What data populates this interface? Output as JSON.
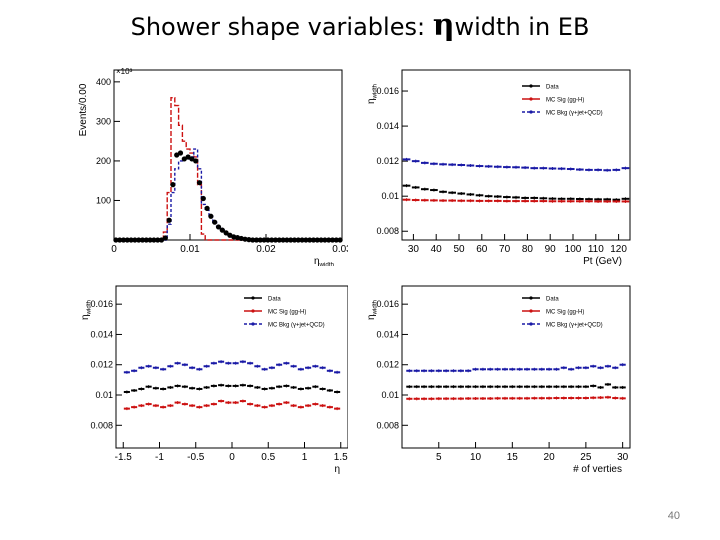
{
  "slide": {
    "title_prefix": "Shower shape variables: ",
    "title_symbol": "η",
    "title_suffix": "width in EB",
    "page_number": "40"
  },
  "colors": {
    "data": "#000000",
    "sig": "#cc1111",
    "bkg": "#1a1aa6"
  },
  "chart_data": [
    {
      "id": "hist",
      "type": "histogram",
      "xlabel": "η_width",
      "ylabel": "Events/0.00",
      "exponent_label": "×10³",
      "xlim": [
        0,
        0.03
      ],
      "ylim": [
        0,
        430
      ],
      "x_tick_labels": [
        "0",
        "0.01",
        "0.02",
        "0.03"
      ],
      "x_tick_values": [
        0,
        0.01,
        0.02,
        0.03
      ],
      "y_tick_labels": [
        "100",
        "200",
        "300",
        "400"
      ],
      "y_tick_values": [
        100,
        200,
        300,
        400
      ],
      "bin_edges": [
        0.0,
        0.0005,
        0.001,
        0.0015,
        0.002,
        0.0025,
        0.003,
        0.0035,
        0.004,
        0.0045,
        0.005,
        0.0055,
        0.006,
        0.0065,
        0.007,
        0.0075,
        0.008,
        0.0085,
        0.009,
        0.0095,
        0.01,
        0.0105,
        0.011,
        0.0115,
        0.012,
        0.0125,
        0.013,
        0.0135,
        0.014,
        0.0145,
        0.015,
        0.0155,
        0.016,
        0.0165,
        0.017,
        0.0175,
        0.018,
        0.0185,
        0.019,
        0.0195,
        0.02,
        0.0205,
        0.021,
        0.0215,
        0.022,
        0.0225,
        0.023,
        0.0235,
        0.024,
        0.0245,
        0.025,
        0.0255,
        0.026,
        0.0265,
        0.027,
        0.0275,
        0.028,
        0.0285,
        0.029,
        0.0295,
        0.03
      ],
      "series": [
        {
          "name": "MC Sig (gg-H)",
          "style": "step-dashed",
          "color_key": "sig",
          "values": [
            0,
            0,
            0,
            0,
            0,
            0,
            0,
            0,
            0,
            0,
            0,
            0,
            0,
            20,
            120,
            360,
            340,
            290,
            250,
            230,
            220,
            210,
            140,
            15,
            0,
            0,
            0,
            0,
            0,
            0,
            0,
            0,
            0,
            0,
            0,
            0,
            0,
            0,
            0,
            0,
            0,
            0,
            0,
            0,
            0,
            0,
            0,
            0,
            0,
            0,
            0,
            0,
            0,
            0,
            0,
            0,
            0,
            0,
            0,
            0
          ]
        },
        {
          "name": "MC Bkg (γ+jet+QCD)",
          "style": "step-dashed",
          "color_key": "bkg",
          "values": [
            0,
            0,
            0,
            0,
            0,
            0,
            0,
            0,
            0,
            0,
            0,
            0,
            0,
            0,
            40,
            120,
            180,
            200,
            205,
            205,
            210,
            230,
            180,
            90,
            75,
            60,
            45,
            35,
            25,
            18,
            12,
            8,
            5,
            3,
            2,
            0,
            0,
            0,
            0,
            0,
            0,
            0,
            0,
            0,
            0,
            0,
            0,
            0,
            0,
            0,
            0,
            0,
            0,
            0,
            0,
            0,
            0,
            0,
            0,
            0
          ]
        },
        {
          "name": "Data",
          "style": "markers",
          "color_key": "data",
          "values": [
            0,
            0,
            0,
            0,
            0,
            0,
            0,
            0,
            0,
            0,
            0,
            0,
            0,
            5,
            50,
            140,
            215,
            220,
            205,
            210,
            205,
            200,
            145,
            105,
            80,
            60,
            45,
            33,
            25,
            18,
            12,
            8,
            6,
            4,
            2,
            1,
            0,
            0,
            0,
            0,
            0,
            0,
            0,
            0,
            0,
            0,
            0,
            0,
            0,
            0,
            0,
            0,
            0,
            0,
            0,
            0,
            0,
            0,
            0,
            0
          ]
        }
      ]
    },
    {
      "id": "vs-pt",
      "type": "profile",
      "xlabel": "Pt (GeV)",
      "ylabel": "η_width",
      "xlim": [
        25,
        125
      ],
      "ylim": [
        0.0075,
        0.0172
      ],
      "x_tick_labels": [
        "30",
        "40",
        "50",
        "60",
        "70",
        "80",
        "90",
        "100",
        "110",
        "120"
      ],
      "x_tick_values": [
        30,
        40,
        50,
        60,
        70,
        80,
        90,
        100,
        110,
        120
      ],
      "y_tick_labels": [
        "0.008",
        "0.01",
        "0.012",
        "0.014",
        "0.016"
      ],
      "y_tick_values": [
        0.008,
        0.01,
        0.012,
        0.014,
        0.016
      ],
      "legend": [
        "Data",
        "MC Sig (gg-H)",
        "MC Bkg (γ+jet+QCD)"
      ],
      "x": [
        27,
        31,
        35,
        39,
        43,
        47,
        51,
        55,
        59,
        63,
        67,
        71,
        75,
        79,
        83,
        87,
        91,
        95,
        99,
        103,
        107,
        111,
        115,
        119,
        123
      ],
      "series": [
        {
          "name": "Data",
          "color_key": "data",
          "values": [
            0.0106,
            0.0105,
            0.0104,
            0.01035,
            0.01025,
            0.0102,
            0.01015,
            0.0101,
            0.01005,
            0.01,
            0.00998,
            0.00995,
            0.00993,
            0.0099,
            0.0099,
            0.00988,
            0.00986,
            0.00985,
            0.00985,
            0.00984,
            0.00983,
            0.00982,
            0.00982,
            0.0098,
            0.00985
          ]
        },
        {
          "name": "MC Sig (gg-H)",
          "color_key": "sig",
          "values": [
            0.0098,
            0.00978,
            0.00977,
            0.00976,
            0.00975,
            0.00975,
            0.00974,
            0.00974,
            0.00973,
            0.00973,
            0.00973,
            0.00972,
            0.00972,
            0.00972,
            0.00972,
            0.00972,
            0.00971,
            0.00971,
            0.00971,
            0.00971,
            0.00971,
            0.0097,
            0.0097,
            0.0097,
            0.0097
          ]
        },
        {
          "name": "MC Bkg (γ+jet+QCD)",
          "color_key": "bkg",
          "values": [
            0.0121,
            0.012,
            0.0119,
            0.01185,
            0.01182,
            0.0118,
            0.01178,
            0.01175,
            0.01172,
            0.0117,
            0.01168,
            0.01166,
            0.01165,
            0.01163,
            0.0116,
            0.0116,
            0.01158,
            0.01157,
            0.01155,
            0.01152,
            0.0115,
            0.0115,
            0.01148,
            0.0115,
            0.0116
          ]
        }
      ]
    },
    {
      "id": "vs-eta",
      "type": "profile",
      "xlabel": "η",
      "ylabel": "η_width",
      "xlim": [
        -1.6,
        1.6
      ],
      "ylim": [
        0.0065,
        0.0172
      ],
      "x_tick_labels": [
        "-1.5",
        "-1",
        "-0.5",
        "0",
        "0.5",
        "1",
        "1.5"
      ],
      "x_tick_values": [
        -1.5,
        -1,
        -0.5,
        0,
        0.5,
        1,
        1.5
      ],
      "y_tick_labels": [
        "0.008",
        "0.01",
        "0.012",
        "0.014",
        "0.016"
      ],
      "y_tick_values": [
        0.008,
        0.01,
        0.012,
        0.014,
        0.016
      ],
      "legend": [
        "Data",
        "MC Sig (gg-H)",
        "MC Bkg (γ+jet+QCD)"
      ],
      "x": [
        -1.45,
        -1.35,
        -1.25,
        -1.15,
        -1.05,
        -0.95,
        -0.85,
        -0.75,
        -0.65,
        -0.55,
        -0.45,
        -0.35,
        -0.25,
        -0.15,
        -0.05,
        0.05,
        0.15,
        0.25,
        0.35,
        0.45,
        0.55,
        0.65,
        0.75,
        0.85,
        0.95,
        1.05,
        1.15,
        1.25,
        1.35,
        1.45
      ],
      "series": [
        {
          "name": "Data",
          "color_key": "data",
          "values": [
            0.0102,
            0.0103,
            0.0104,
            0.01055,
            0.01045,
            0.0104,
            0.0105,
            0.0106,
            0.01055,
            0.01045,
            0.0104,
            0.0105,
            0.0106,
            0.01065,
            0.0106,
            0.0106,
            0.01065,
            0.0106,
            0.0105,
            0.0104,
            0.01045,
            0.01055,
            0.0106,
            0.0105,
            0.0104,
            0.01045,
            0.01055,
            0.0104,
            0.0103,
            0.0102
          ]
        },
        {
          "name": "MC Sig (gg-H)",
          "color_key": "sig",
          "values": [
            0.0091,
            0.0092,
            0.0093,
            0.0094,
            0.0093,
            0.0092,
            0.0093,
            0.0095,
            0.0094,
            0.0093,
            0.0092,
            0.0093,
            0.0094,
            0.0096,
            0.0095,
            0.0095,
            0.0096,
            0.0094,
            0.0093,
            0.0092,
            0.0093,
            0.0094,
            0.0095,
            0.0093,
            0.0092,
            0.0093,
            0.0094,
            0.0093,
            0.0092,
            0.0091
          ]
        },
        {
          "name": "MC Bkg (γ+jet+QCD)",
          "color_key": "bkg",
          "values": [
            0.0115,
            0.0116,
            0.0118,
            0.0119,
            0.0118,
            0.0117,
            0.0119,
            0.0121,
            0.012,
            0.0118,
            0.0117,
            0.0119,
            0.0121,
            0.0122,
            0.0121,
            0.0121,
            0.0122,
            0.0121,
            0.0119,
            0.0117,
            0.0118,
            0.012,
            0.0121,
            0.0119,
            0.0117,
            0.0118,
            0.0119,
            0.0118,
            0.0116,
            0.0115
          ]
        }
      ]
    },
    {
      "id": "vs-nvtx",
      "type": "profile",
      "xlabel": "# of verties",
      "ylabel": "η_width",
      "xlim": [
        0,
        31
      ],
      "ylim": [
        0.0065,
        0.0172
      ],
      "x_tick_labels": [
        "5",
        "10",
        "15",
        "20",
        "25",
        "30"
      ],
      "x_tick_values": [
        5,
        10,
        15,
        20,
        25,
        30
      ],
      "y_tick_labels": [
        "0.008",
        "0.01",
        "0.012",
        "0.014",
        "0.016"
      ],
      "y_tick_values": [
        0.008,
        0.01,
        0.012,
        0.014,
        0.016
      ],
      "legend": [
        "Data",
        "MC Sig (gg-H)",
        "MC Bkg (γ+jet+QCD)"
      ],
      "x": [
        1,
        2,
        3,
        4,
        5,
        6,
        7,
        8,
        9,
        10,
        11,
        12,
        13,
        14,
        15,
        16,
        17,
        18,
        19,
        20,
        21,
        22,
        23,
        24,
        25,
        26,
        27,
        28,
        29,
        30
      ],
      "series": [
        {
          "name": "Data",
          "color_key": "data",
          "values": [
            0.01055,
            0.01055,
            0.01055,
            0.01055,
            0.01055,
            0.01055,
            0.01055,
            0.01055,
            0.01055,
            0.01055,
            0.01055,
            0.01055,
            0.01055,
            0.01055,
            0.01055,
            0.01055,
            0.01055,
            0.01055,
            0.01055,
            0.01055,
            0.01055,
            0.01055,
            0.01055,
            0.01055,
            0.01055,
            0.0106,
            0.0105,
            0.0107,
            0.0105,
            0.0105
          ]
        },
        {
          "name": "MC Sig (gg-H)",
          "color_key": "sig",
          "values": [
            0.00975,
            0.00975,
            0.00975,
            0.00975,
            0.00976,
            0.00976,
            0.00976,
            0.00976,
            0.00977,
            0.00977,
            0.00977,
            0.00977,
            0.00978,
            0.00978,
            0.00978,
            0.00978,
            0.00978,
            0.00979,
            0.00979,
            0.00979,
            0.0098,
            0.0098,
            0.0098,
            0.0098,
            0.0098,
            0.00982,
            0.00983,
            0.00985,
            0.0098,
            0.00978
          ]
        },
        {
          "name": "MC Bkg (γ+jet+QCD)",
          "color_key": "bkg",
          "values": [
            0.0116,
            0.0116,
            0.0116,
            0.0116,
            0.0116,
            0.0116,
            0.0116,
            0.0116,
            0.0116,
            0.0117,
            0.0117,
            0.0117,
            0.0117,
            0.0117,
            0.0117,
            0.0117,
            0.0117,
            0.0117,
            0.0117,
            0.0117,
            0.0117,
            0.0118,
            0.0117,
            0.0118,
            0.0118,
            0.0119,
            0.0118,
            0.0119,
            0.0118,
            0.012
          ]
        }
      ]
    }
  ]
}
